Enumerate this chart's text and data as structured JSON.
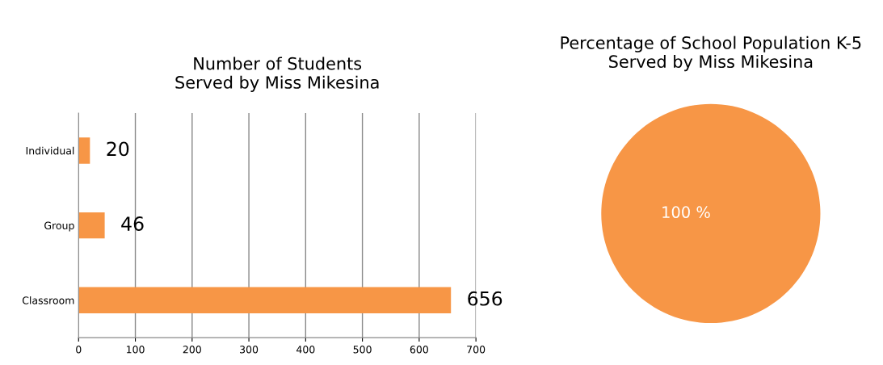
{
  "chart_data": [
    {
      "type": "bar",
      "title": "Number of Students\nServed by Miss Mikesina",
      "orientation": "horizontal",
      "categories": [
        "Individual",
        "Group",
        "Classroom"
      ],
      "values": [
        20,
        46,
        656
      ],
      "color": "#f79646",
      "xlim": [
        0,
        700
      ],
      "xticks": [
        0,
        100,
        200,
        300,
        400,
        500,
        600,
        700
      ],
      "grid": "x",
      "data_labels": true
    },
    {
      "type": "pie",
      "title": "Percentage of School Population K-5\nServed by Miss Mikesina",
      "categories": [
        null
      ],
      "values": [
        100
      ],
      "colors": [
        "#f79646"
      ],
      "value_labels": [
        "100 %"
      ]
    }
  ]
}
